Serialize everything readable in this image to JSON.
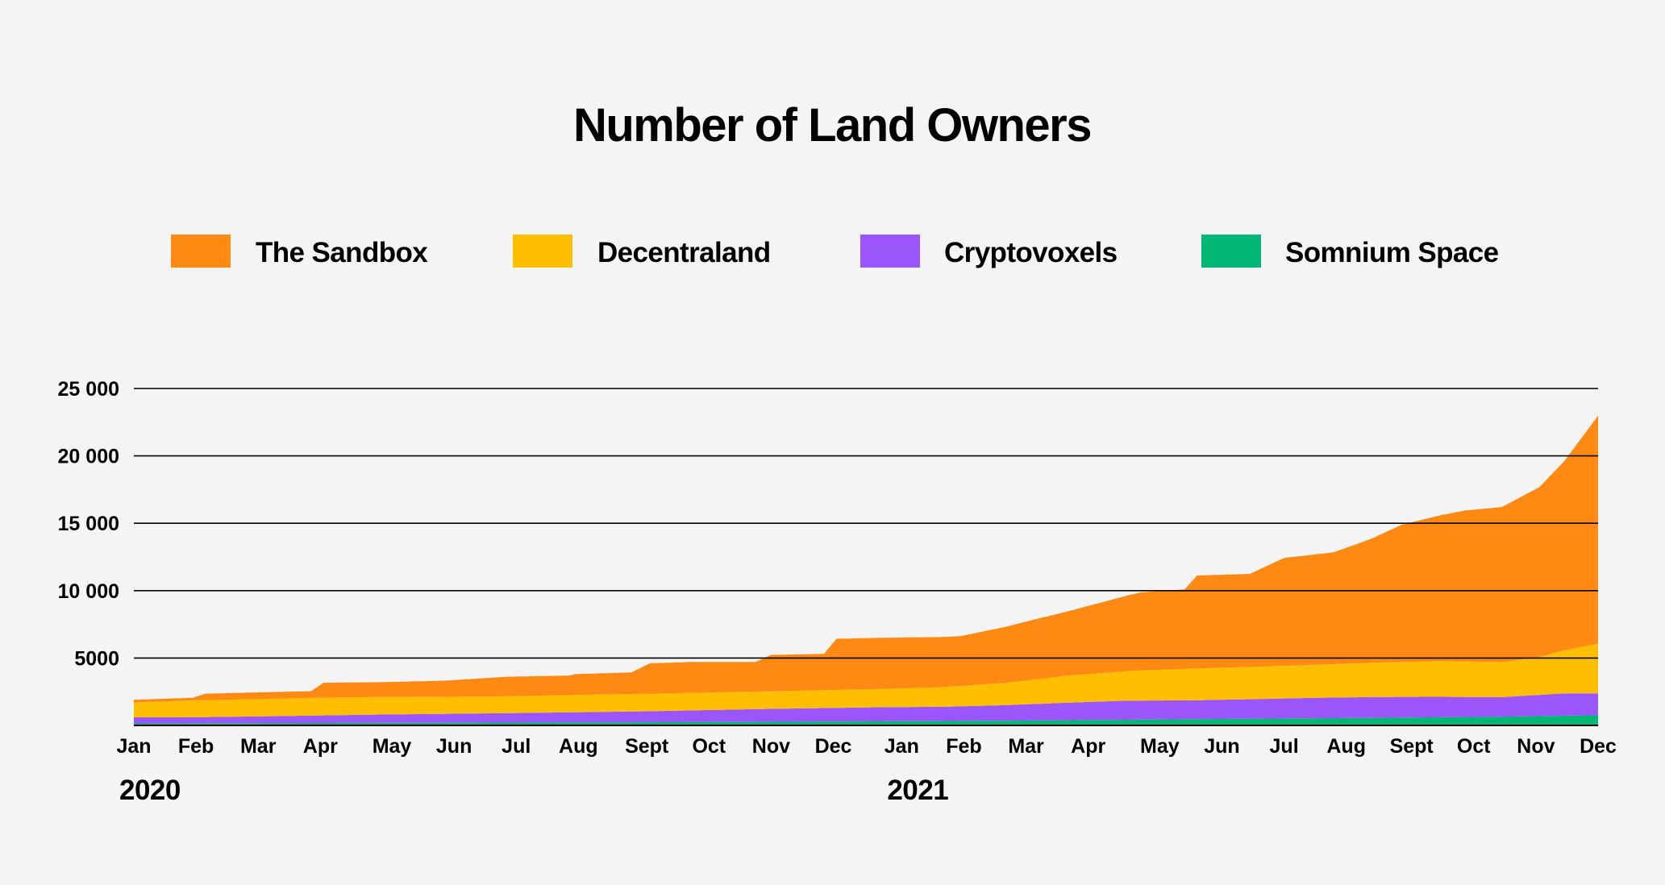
{
  "chart_data": {
    "type": "area",
    "stacked": true,
    "title": "Number of Land Owners",
    "legend_position": "top",
    "grid": true,
    "ylim": [
      0,
      25000
    ],
    "yticks": [
      5000,
      10000,
      15000,
      20000,
      25000
    ],
    "ytick_labels": [
      "5000",
      "10 000",
      "15 000",
      "20 000",
      "25 000"
    ],
    "x_labels": [
      "Jan",
      "Feb",
      "Mar",
      "Apr",
      "May",
      "Jun",
      "Jul",
      "Aug",
      "Sept",
      "Oct",
      "Nov",
      "Dec",
      "Jan",
      "Feb",
      "Mar",
      "Apr",
      "May",
      "Jun",
      "Jul",
      "Aug",
      "Sept",
      "Oct",
      "Nov",
      "Dec"
    ],
    "x_index": [
      0,
      1,
      2,
      3,
      4.15,
      5.15,
      6.15,
      7.15,
      8.25,
      9.25,
      10.25,
      11.25,
      12.35,
      13.35,
      14.35,
      15.35,
      16.5,
      17.5,
      18.5,
      19.5,
      20.55,
      21.55,
      22.55,
      23.55
    ],
    "years": [
      {
        "label": "2020",
        "at_index": 0
      },
      {
        "label": "2021",
        "at_index": 12.35
      }
    ],
    "series": [
      {
        "name": "Somnium Space",
        "color": "#00b873",
        "points": [
          [
            0,
            150
          ],
          [
            2,
            170
          ],
          [
            4,
            190
          ],
          [
            6,
            210
          ],
          [
            8,
            230
          ],
          [
            10,
            260
          ],
          [
            12,
            300
          ],
          [
            14,
            350
          ],
          [
            16,
            420
          ],
          [
            18,
            500
          ],
          [
            20,
            560
          ],
          [
            22,
            650
          ],
          [
            23.55,
            760
          ]
        ]
      },
      {
        "name": "Cryptovoxels",
        "color": "#9b56fb",
        "points": [
          [
            0,
            450
          ],
          [
            1,
            450
          ],
          [
            2,
            500
          ],
          [
            3,
            560
          ],
          [
            4,
            620
          ],
          [
            5,
            660
          ],
          [
            6,
            700
          ],
          [
            7,
            750
          ],
          [
            8,
            800
          ],
          [
            9,
            870
          ],
          [
            10,
            950
          ],
          [
            11,
            1000
          ],
          [
            12,
            1050
          ],
          [
            13,
            1060
          ],
          [
            14,
            1150
          ],
          [
            15,
            1300
          ],
          [
            16,
            1420
          ],
          [
            17,
            1400
          ],
          [
            18,
            1450
          ],
          [
            19,
            1520
          ],
          [
            20,
            1550
          ],
          [
            21,
            1520
          ],
          [
            22,
            1450
          ],
          [
            23,
            1650
          ],
          [
            23.55,
            1620
          ]
        ]
      },
      {
        "name": "Decentraland",
        "color": "#ffbe00",
        "points": [
          [
            0,
            1100
          ],
          [
            1,
            1250
          ],
          [
            2,
            1280
          ],
          [
            3,
            1320
          ],
          [
            4,
            1300
          ],
          [
            5,
            1260
          ],
          [
            6,
            1250
          ],
          [
            7,
            1280
          ],
          [
            8,
            1300
          ],
          [
            9,
            1300
          ],
          [
            10,
            1300
          ],
          [
            11,
            1320
          ],
          [
            12,
            1350
          ],
          [
            13,
            1450
          ],
          [
            14,
            1650
          ],
          [
            15,
            2000
          ],
          [
            16,
            2200
          ],
          [
            17,
            2350
          ],
          [
            18,
            2400
          ],
          [
            19,
            2450
          ],
          [
            20,
            2550
          ],
          [
            21,
            2650
          ],
          [
            22,
            2600
          ],
          [
            22.6,
            2800
          ],
          [
            23,
            3200
          ],
          [
            23.55,
            3700
          ]
        ]
      },
      {
        "name": "The Sandbox",
        "color": "#ff8a13",
        "points": [
          [
            0,
            200
          ],
          [
            0.95,
            200
          ],
          [
            1.15,
            480
          ],
          [
            2,
            500
          ],
          [
            2.85,
            500
          ],
          [
            3.05,
            1100
          ],
          [
            4,
            1100
          ],
          [
            5,
            1200
          ],
          [
            6,
            1450
          ],
          [
            7,
            1450
          ],
          [
            7.1,
            1550
          ],
          [
            8,
            1600
          ],
          [
            8.3,
            2250
          ],
          [
            9,
            2300
          ],
          [
            10,
            2200
          ],
          [
            10.25,
            2700
          ],
          [
            11.1,
            2700
          ],
          [
            11.3,
            3800
          ],
          [
            12,
            3800
          ],
          [
            13.3,
            3700
          ],
          [
            14.4,
            4400
          ],
          [
            15,
            4750
          ],
          [
            16.2,
            5800
          ],
          [
            16.9,
            5900
          ],
          [
            17.1,
            6900
          ],
          [
            17.95,
            6900
          ],
          [
            18.5,
            8000
          ],
          [
            19.3,
            8300
          ],
          [
            19.9,
            9200
          ],
          [
            20.4,
            10200
          ],
          [
            21.4,
            11200
          ],
          [
            22,
            11500
          ],
          [
            22.6,
            12600
          ],
          [
            23,
            14000
          ],
          [
            23.55,
            16900
          ]
        ]
      }
    ]
  }
}
